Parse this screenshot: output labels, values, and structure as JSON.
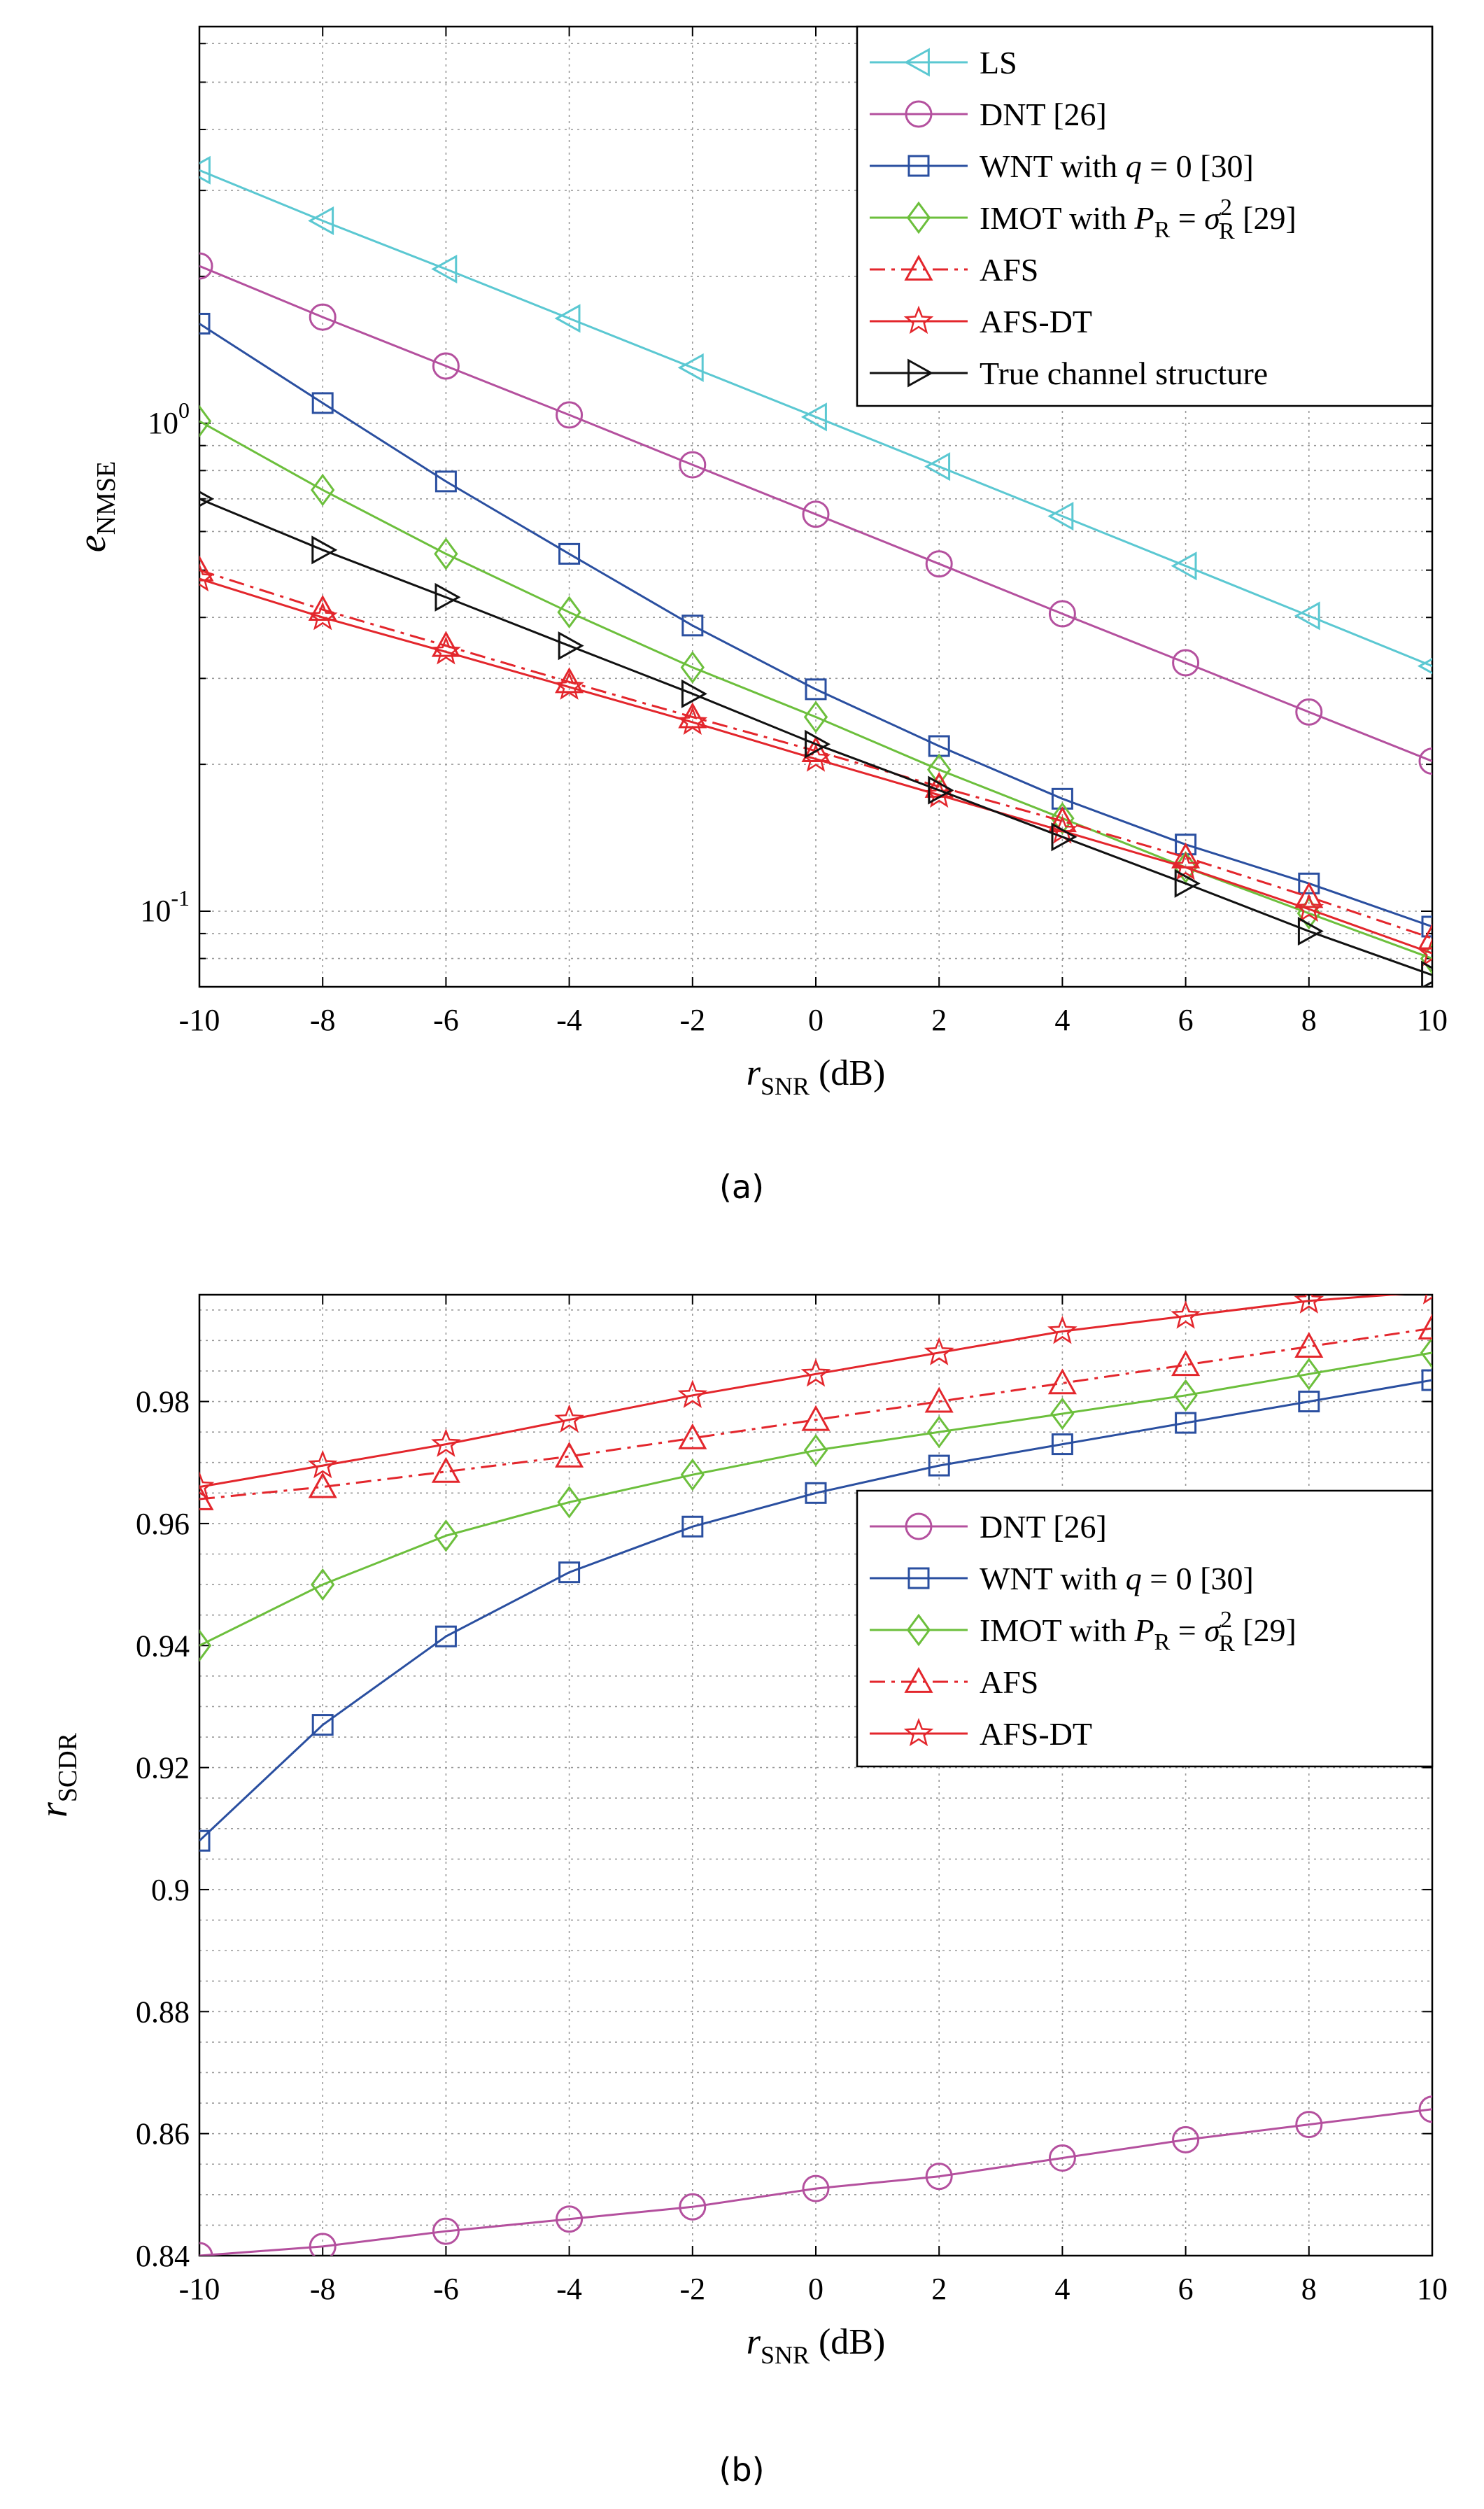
{
  "chart_data": [
    {
      "type": "line",
      "caption": "(a)",
      "xlabel_var": "r",
      "xlabel_sub": "SNR",
      "xlabel_unit": "(dB)",
      "ylabel_var": "e",
      "ylabel_sub": "NMSE",
      "yscale": "log",
      "xlim": [
        -10,
        10
      ],
      "ylim": [
        0.07,
        6.5
      ],
      "xticks": [
        -10,
        -8,
        -6,
        -4,
        -2,
        0,
        2,
        4,
        6,
        8,
        10
      ],
      "x_tick_labels": [
        "-10",
        "-8",
        "-6",
        "-4",
        "-2",
        "0",
        "2",
        "4",
        "6",
        "8",
        "10"
      ],
      "y_major_ticks": [
        {
          "value": 1,
          "base": "10",
          "exp": "0"
        },
        {
          "value": 0.1,
          "base": "10",
          "exp": "-1"
        }
      ],
      "grid": true,
      "legend_placement": "top-right",
      "x": [
        -10,
        -8,
        -6,
        -4,
        -2,
        0,
        2,
        4,
        6,
        8,
        10
      ],
      "series": [
        {
          "name": "LS",
          "legend": [
            "LS"
          ],
          "color": "#5bc8d2",
          "marker": "triangle-left",
          "dash": "solid",
          "values": [
            3.3,
            2.6,
            2.07,
            1.64,
            1.3,
            1.03,
            0.815,
            0.645,
            0.51,
            0.403,
            0.318
          ]
        },
        {
          "name": "DNT [26]",
          "legend": [
            "DNT [26]"
          ],
          "color": "#b4509e",
          "marker": "circle",
          "dash": "solid",
          "values": [
            2.1,
            1.65,
            1.31,
            1.04,
            0.822,
            0.651,
            0.515,
            0.407,
            0.323,
            0.256,
            0.203
          ]
        },
        {
          "name": "WNT with q = 0 [30]",
          "legend": [
            "WNT with ",
            "q",
            " = 0 [30]"
          ],
          "color": "#2a4fa0",
          "marker": "square",
          "dash": "solid",
          "values": [
            1.6,
            1.1,
            0.76,
            0.54,
            0.385,
            0.285,
            0.218,
            0.17,
            0.137,
            0.114,
            0.093
          ]
        },
        {
          "name": "IMOT with P_R = σ_R^2 [29]",
          "legend": [
            "IMOT with ",
            "P",
            "R",
            " = ",
            "σ",
            "2",
            "R",
            " [29]"
          ],
          "color": "#6cbf3c",
          "marker": "diamond",
          "dash": "solid",
          "values": [
            1.01,
            0.73,
            0.54,
            0.41,
            0.316,
            0.25,
            0.195,
            0.155,
            0.123,
            0.099,
            0.08
          ]
        },
        {
          "name": "AFS",
          "legend": [
            "AFS"
          ],
          "color": "#e3262c",
          "marker": "triangle-up",
          "dash": "dashdot",
          "values": [
            0.5,
            0.415,
            0.35,
            0.295,
            0.25,
            0.213,
            0.18,
            0.153,
            0.129,
            0.107,
            0.088
          ]
        },
        {
          "name": "AFS-DT",
          "legend": [
            "AFS-DT"
          ],
          "color": "#e3262c",
          "marker": "star",
          "dash": "solid",
          "values": [
            0.48,
            0.4,
            0.34,
            0.288,
            0.244,
            0.205,
            0.173,
            0.146,
            0.123,
            0.101,
            0.082
          ]
        },
        {
          "name": "True channel structure",
          "legend": [
            "True channel structure"
          ],
          "color": "#111111",
          "marker": "triangle-right",
          "dash": "solid",
          "values": [
            0.7,
            0.55,
            0.44,
            0.35,
            0.279,
            0.22,
            0.177,
            0.142,
            0.114,
            0.091,
            0.074
          ]
        }
      ]
    },
    {
      "type": "line",
      "caption": "(b)",
      "xlabel_var": "r",
      "xlabel_sub": "SNR",
      "xlabel_unit": "(dB)",
      "ylabel_var": "r",
      "ylabel_sub": "SCDR",
      "yscale": "linear",
      "xlim": [
        -10,
        10
      ],
      "ylim": [
        0.84,
        0.9975
      ],
      "xticks": [
        -10,
        -8,
        -6,
        -4,
        -2,
        0,
        2,
        4,
        6,
        8,
        10
      ],
      "x_tick_labels": [
        "-10",
        "-8",
        "-6",
        "-4",
        "-2",
        "0",
        "2",
        "4",
        "6",
        "8",
        "10"
      ],
      "yticks": [
        0.84,
        0.86,
        0.88,
        0.9,
        0.92,
        0.94,
        0.96,
        0.98
      ],
      "y_tick_labels": [
        "0.84",
        "0.86",
        "0.88",
        "0.9",
        "0.92",
        "0.94",
        "0.96",
        "0.98"
      ],
      "grid": true,
      "legend_placement": "right",
      "x": [
        -10,
        -8,
        -6,
        -4,
        -2,
        0,
        2,
        4,
        6,
        8,
        10
      ],
      "series": [
        {
          "name": "DNT [26]",
          "legend": [
            "DNT [26]"
          ],
          "color": "#b4509e",
          "marker": "circle",
          "dash": "solid",
          "values": [
            0.84,
            0.8415,
            0.844,
            0.846,
            0.848,
            0.851,
            0.853,
            0.856,
            0.859,
            0.8615,
            0.864
          ]
        },
        {
          "name": "WNT with q = 0 [30]",
          "legend": [
            "WNT with ",
            "q",
            " = 0 [30]"
          ],
          "color": "#2a4fa0",
          "marker": "square",
          "dash": "solid",
          "values": [
            0.908,
            0.927,
            0.9415,
            0.952,
            0.9595,
            0.965,
            0.9695,
            0.973,
            0.9765,
            0.98,
            0.9835
          ]
        },
        {
          "name": "IMOT with P_R = σ_R^2 [29]",
          "legend": [
            "IMOT with ",
            "P",
            "R",
            " = ",
            "σ",
            "2",
            "R",
            " [29]"
          ],
          "color": "#6cbf3c",
          "marker": "diamond",
          "dash": "solid",
          "values": [
            0.94,
            0.95,
            0.958,
            0.9635,
            0.968,
            0.972,
            0.975,
            0.978,
            0.981,
            0.9845,
            0.988
          ]
        },
        {
          "name": "AFS",
          "legend": [
            "AFS"
          ],
          "color": "#e3262c",
          "marker": "triangle-up",
          "dash": "dashdot",
          "values": [
            0.964,
            0.966,
            0.9685,
            0.971,
            0.974,
            0.977,
            0.98,
            0.983,
            0.986,
            0.989,
            0.992
          ]
        },
        {
          "name": "AFS-DT",
          "legend": [
            "AFS-DT"
          ],
          "color": "#e3262c",
          "marker": "star",
          "dash": "solid",
          "values": [
            0.966,
            0.9695,
            0.973,
            0.977,
            0.981,
            0.9845,
            0.988,
            0.9915,
            0.994,
            0.9965,
            0.998
          ]
        }
      ]
    }
  ]
}
